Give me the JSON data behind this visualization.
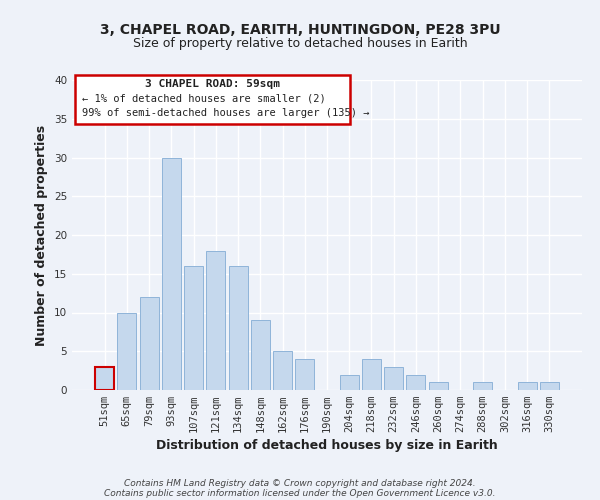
{
  "title": "3, CHAPEL ROAD, EARITH, HUNTINGDON, PE28 3PU",
  "subtitle": "Size of property relative to detached houses in Earith",
  "xlabel": "Distribution of detached houses by size in Earith",
  "ylabel": "Number of detached properties",
  "categories": [
    "51sqm",
    "65sqm",
    "79sqm",
    "93sqm",
    "107sqm",
    "121sqm",
    "134sqm",
    "148sqm",
    "162sqm",
    "176sqm",
    "190sqm",
    "204sqm",
    "218sqm",
    "232sqm",
    "246sqm",
    "260sqm",
    "274sqm",
    "288sqm",
    "302sqm",
    "316sqm",
    "330sqm"
  ],
  "values": [
    3,
    10,
    12,
    30,
    16,
    18,
    16,
    9,
    5,
    4,
    0,
    2,
    4,
    3,
    2,
    1,
    0,
    1,
    0,
    1,
    1
  ],
  "bar_color": "#c5d8ed",
  "bar_edge_color": "#8fb4d9",
  "highlight_bar_index": 0,
  "highlight_edge_color": "#cc0000",
  "ylim": [
    0,
    40
  ],
  "yticks": [
    0,
    5,
    10,
    15,
    20,
    25,
    30,
    35,
    40
  ],
  "annotation_title": "3 CHAPEL ROAD: 59sqm",
  "annotation_line1": "← 1% of detached houses are smaller (2)",
  "annotation_line2": "99% of semi-detached houses are larger (135) →",
  "annotation_box_color": "#ffffff",
  "annotation_box_edge": "#cc0000",
  "footer_line1": "Contains HM Land Registry data © Crown copyright and database right 2024.",
  "footer_line2": "Contains public sector information licensed under the Open Government Licence v3.0.",
  "background_color": "#eef2f9",
  "grid_color": "#ffffff",
  "title_fontsize": 10,
  "subtitle_fontsize": 9,
  "axis_label_fontsize": 9,
  "tick_fontsize": 7.5,
  "footer_fontsize": 6.5
}
